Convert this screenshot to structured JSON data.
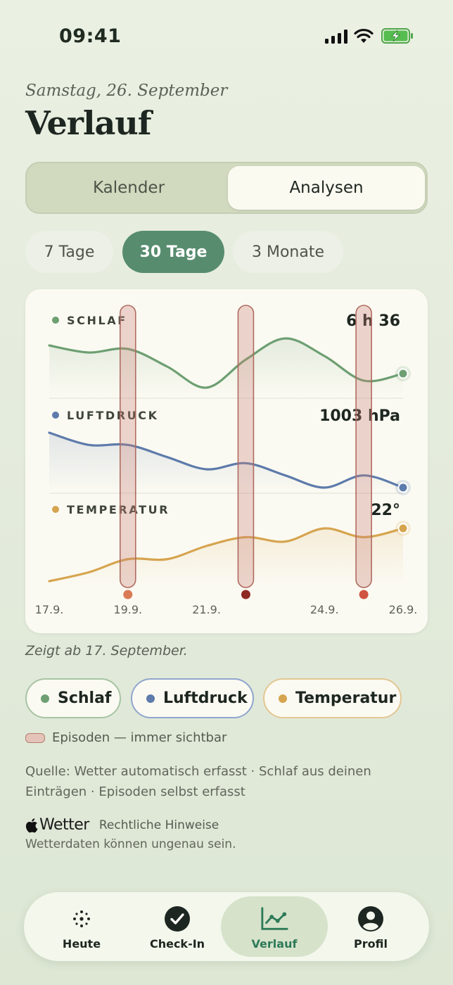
{
  "status_bar": {
    "time": "09:41"
  },
  "header": {
    "date": "Samstag, 26. September",
    "title": "Verlauf"
  },
  "segment": {
    "calendar": "Kalender",
    "analytics": "Analysen",
    "selected": "Analysen"
  },
  "ranges": {
    "options": [
      "7 Tage",
      "30 Tage",
      "3 Monate"
    ],
    "selected": "30 Tage"
  },
  "chart_data": {
    "type": "line",
    "x": [
      "17.9.",
      "18.9.",
      "19.9.",
      "20.9.",
      "21.9.",
      "22.9.",
      "23.9.",
      "24.9.",
      "25.9.",
      "26.9."
    ],
    "x_tick_labels": [
      "17.9.",
      "19.9.",
      "21.9.",
      "24.9.",
      "26.9."
    ],
    "series": [
      {
        "name": "SCHLAF",
        "current": "6 h 36",
        "color": "#6d9f72",
        "values": [
          7.4,
          7.2,
          7.3,
          6.8,
          6.2,
          7.0,
          7.6,
          7.1,
          6.4,
          6.6
        ]
      },
      {
        "name": "LUFTDRUCK",
        "current": "1003 hPa",
        "color": "#5d7bab",
        "values": [
          1012,
          1010,
          1010,
          1008,
          1006,
          1007,
          1005,
          1003,
          1005,
          1003
        ]
      },
      {
        "name": "TEMPERATUR",
        "current": "22°",
        "color": "#d6a44f",
        "values": [
          16,
          17,
          18.5,
          18.5,
          20,
          21,
          20.5,
          22,
          21,
          22
        ]
      }
    ],
    "episodes": [
      {
        "date": "19.9.",
        "color": "#d97a56"
      },
      {
        "date": "22.9.",
        "color": "#8e2a22"
      },
      {
        "date": "25.9.",
        "color": "#d0543f"
      }
    ]
  },
  "note": "Zeigt ab 17. September.",
  "legend": {
    "chips": [
      {
        "label": "Schlaf",
        "color": "#6d9f72"
      },
      {
        "label": "Luftdruck",
        "color": "#5d7bab"
      },
      {
        "label": "Temperatur",
        "color": "#d6a44f"
      }
    ],
    "episodes": "Episoden — immer sichtbar"
  },
  "source": "Quelle: Wetter automatisch erfasst · Schlaf aus deinen Einträgen · Episoden selbst erfasst",
  "weather": {
    "brand": "Wetter",
    "legal": "Rechtliche Hinweise",
    "disclaimer": "Wetterdaten können ungenau sein."
  },
  "tabbar": {
    "items": [
      "Heute",
      "Check-In",
      "Verlauf",
      "Profil"
    ],
    "active": "Verlauf"
  }
}
